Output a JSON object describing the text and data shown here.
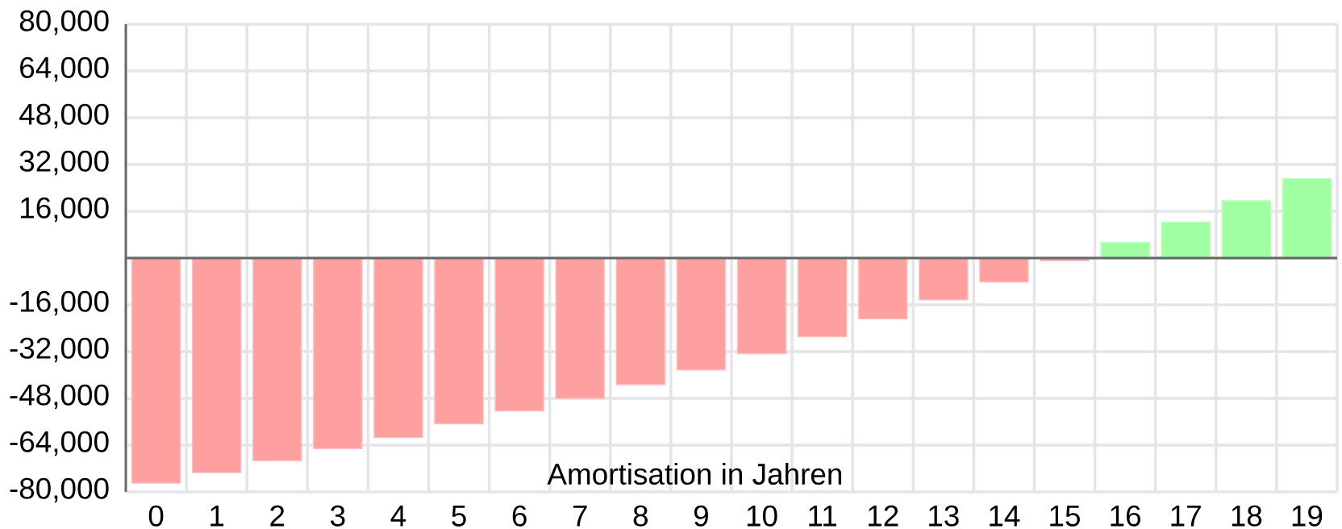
{
  "chart_data": {
    "type": "bar",
    "xlabel": "Amortisation in Jahren",
    "categories": [
      "0",
      "1",
      "2",
      "3",
      "4",
      "5",
      "6",
      "7",
      "8",
      "9",
      "10",
      "11",
      "12",
      "13",
      "14",
      "15",
      "16",
      "17",
      "18",
      "19"
    ],
    "values": [
      -77000,
      -73400,
      -69300,
      -65200,
      -61400,
      -56700,
      -52300,
      -48000,
      -43300,
      -38300,
      -32700,
      -26900,
      -20800,
      -14300,
      -8200,
      -900,
      5300,
      12300,
      19600,
      27200
    ],
    "colors": [
      "#ffa0a0",
      "#ffa0a0",
      "#ffa0a0",
      "#ffa0a0",
      "#ffa0a0",
      "#ffa0a0",
      "#ffa0a0",
      "#ffa0a0",
      "#ffa0a0",
      "#ffa0a0",
      "#ffa0a0",
      "#ffa0a0",
      "#ffa0a0",
      "#ffa0a0",
      "#ffa0a0",
      "#ffa0a0",
      "#a0ffa0",
      "#a0ffa0",
      "#a0ffa0",
      "#a0ffa0"
    ],
    "ylim": [
      -80000,
      80000
    ],
    "yticks": [
      {
        "value": -80000,
        "label": "-80,000"
      },
      {
        "value": -64000,
        "label": "-64,000"
      },
      {
        "value": -48000,
        "label": "-48,000"
      },
      {
        "value": -32000,
        "label": "-32,000"
      },
      {
        "value": -16000,
        "label": "-16,000"
      },
      {
        "value": 0,
        "label": null
      },
      {
        "value": 16000,
        "label": "16,000"
      },
      {
        "value": 32000,
        "label": "32,000"
      },
      {
        "value": 48000,
        "label": "48,000"
      },
      {
        "value": 64000,
        "label": "64,000"
      },
      {
        "value": 80000,
        "label": "80,000"
      }
    ],
    "grid": true
  }
}
